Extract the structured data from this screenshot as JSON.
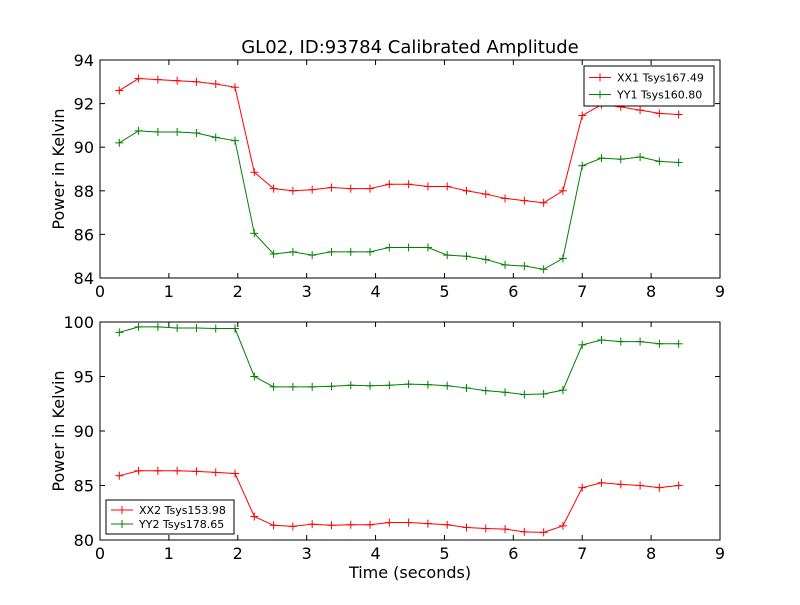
{
  "title": "GL02, ID:93784 Calibrated Amplitude",
  "chart_data": [
    {
      "type": "line",
      "title": "GL02, ID:93784 Calibrated Amplitude",
      "xlabel": "",
      "ylabel": "Power in Kelvin",
      "xlim": [
        0,
        9
      ],
      "ylim": [
        84,
        94
      ],
      "xticks": [
        "0",
        "1",
        "2",
        "3",
        "4",
        "5",
        "6",
        "7",
        "8",
        "9"
      ],
      "yticks": [
        "84",
        "86",
        "88",
        "90",
        "92",
        "94"
      ],
      "grid": false,
      "legend_position": "top-right",
      "series": [
        {
          "name": "XX1 Tsys167.49",
          "color": "#ff0000",
          "marker": "plus",
          "x": [
            0.28,
            0.56,
            0.84,
            1.12,
            1.4,
            1.68,
            1.96,
            2.24,
            2.52,
            2.8,
            3.08,
            3.36,
            3.64,
            3.92,
            4.2,
            4.48,
            4.76,
            5.04,
            5.32,
            5.6,
            5.88,
            6.16,
            6.44,
            6.72,
            7.0,
            7.28,
            7.56,
            7.84,
            8.12,
            8.4
          ],
          "y": [
            92.6,
            93.15,
            93.1,
            93.05,
            93.0,
            92.9,
            92.75,
            88.85,
            88.1,
            88.0,
            88.05,
            88.15,
            88.1,
            88.1,
            88.3,
            88.3,
            88.2,
            88.2,
            88.0,
            87.85,
            87.65,
            87.55,
            87.45,
            88.0,
            91.45,
            91.95,
            91.85,
            91.7,
            91.55,
            91.5
          ]
        },
        {
          "name": "YY1 Tsys160.80",
          "color": "#008000",
          "marker": "plus",
          "x": [
            0.28,
            0.56,
            0.84,
            1.12,
            1.4,
            1.68,
            1.96,
            2.24,
            2.52,
            2.8,
            3.08,
            3.36,
            3.64,
            3.92,
            4.2,
            4.48,
            4.76,
            5.04,
            5.32,
            5.6,
            5.88,
            6.16,
            6.44,
            6.72,
            7.0,
            7.28,
            7.56,
            7.84,
            8.12,
            8.4
          ],
          "y": [
            90.2,
            90.75,
            90.7,
            90.7,
            90.65,
            90.45,
            90.3,
            86.05,
            85.1,
            85.2,
            85.05,
            85.2,
            85.2,
            85.2,
            85.4,
            85.4,
            85.4,
            85.05,
            85.0,
            84.85,
            84.6,
            84.55,
            84.4,
            84.9,
            89.15,
            89.5,
            89.45,
            89.55,
            89.35,
            89.3
          ]
        }
      ]
    },
    {
      "type": "line",
      "title": "",
      "xlabel": "Time (seconds)",
      "ylabel": "Power in Kelvin",
      "xlim": [
        0,
        9
      ],
      "ylim": [
        80,
        100
      ],
      "xticks": [
        "0",
        "1",
        "2",
        "3",
        "4",
        "5",
        "6",
        "7",
        "8",
        "9"
      ],
      "yticks": [
        "80",
        "85",
        "90",
        "95",
        "100"
      ],
      "grid": false,
      "legend_position": "bottom-left",
      "series": [
        {
          "name": "XX2 Tsys153.98",
          "color": "#ff0000",
          "marker": "plus",
          "x": [
            0.28,
            0.56,
            0.84,
            1.12,
            1.4,
            1.68,
            1.96,
            2.24,
            2.52,
            2.8,
            3.08,
            3.36,
            3.64,
            3.92,
            4.2,
            4.48,
            4.76,
            5.04,
            5.32,
            5.6,
            5.88,
            6.16,
            6.44,
            6.72,
            7.0,
            7.28,
            7.56,
            7.84,
            8.12,
            8.4
          ],
          "y": [
            85.9,
            86.35,
            86.35,
            86.35,
            86.3,
            86.2,
            86.1,
            82.15,
            81.35,
            81.25,
            81.45,
            81.35,
            81.4,
            81.4,
            81.6,
            81.6,
            81.5,
            81.4,
            81.15,
            81.05,
            81.0,
            80.75,
            80.7,
            81.3,
            84.8,
            85.25,
            85.1,
            85.0,
            84.8,
            85.0
          ]
        },
        {
          "name": "YY2 Tsys178.65",
          "color": "#008000",
          "marker": "plus",
          "x": [
            0.28,
            0.56,
            0.84,
            1.12,
            1.4,
            1.68,
            1.96,
            2.24,
            2.52,
            2.8,
            3.08,
            3.36,
            3.64,
            3.92,
            4.2,
            4.48,
            4.76,
            5.04,
            5.32,
            5.6,
            5.88,
            6.16,
            6.44,
            6.72,
            7.0,
            7.28,
            7.56,
            7.84,
            8.12,
            8.4
          ],
          "y": [
            99.05,
            99.55,
            99.55,
            99.45,
            99.45,
            99.4,
            99.4,
            95.0,
            94.05,
            94.05,
            94.05,
            94.1,
            94.2,
            94.15,
            94.2,
            94.3,
            94.25,
            94.15,
            93.95,
            93.7,
            93.55,
            93.35,
            93.4,
            93.75,
            97.9,
            98.35,
            98.2,
            98.2,
            98.0,
            98.0
          ]
        }
      ]
    }
  ]
}
